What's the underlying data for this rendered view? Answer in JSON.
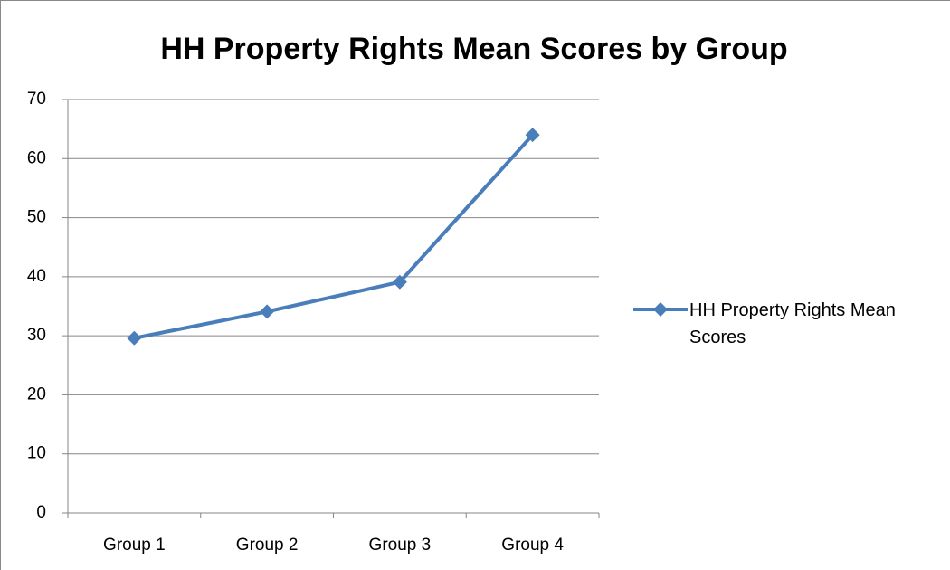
{
  "chart_data": {
    "type": "line",
    "title": "HH Property Rights Mean Scores by Group",
    "categories": [
      "Group 1",
      "Group 2",
      "Group 3",
      "Group 4"
    ],
    "series": [
      {
        "name": "HH Property Rights Mean Scores",
        "color": "#4a7ebb",
        "values": [
          29.6,
          34.1,
          39.1,
          64
        ]
      }
    ],
    "ylim": [
      0,
      70
    ],
    "yticks": [
      0,
      10,
      20,
      30,
      40,
      50,
      60,
      70
    ],
    "grid": true,
    "legend": "right"
  }
}
